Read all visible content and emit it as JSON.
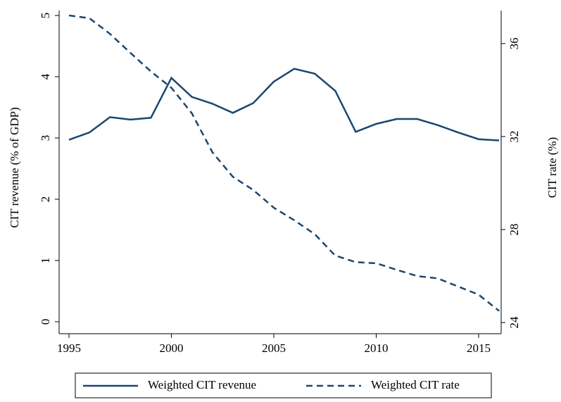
{
  "chart_data": {
    "type": "line",
    "x": [
      1995,
      1996,
      1997,
      1998,
      1999,
      2000,
      2001,
      2002,
      2003,
      2004,
      2005,
      2006,
      2007,
      2008,
      2009,
      2010,
      2011,
      2012,
      2013,
      2014,
      2015,
      2016
    ],
    "series": [
      {
        "name": "Weighted CIT revenue",
        "color": "#1a476f",
        "dash": "solid",
        "values": [
          2.97,
          3.09,
          3.34,
          3.3,
          3.33,
          3.98,
          3.67,
          3.56,
          3.41,
          3.57,
          3.92,
          4.13,
          4.05,
          3.77,
          3.1,
          3.23,
          3.31,
          3.31,
          3.21,
          3.09,
          2.98,
          2.96
        ]
      },
      {
        "name": "Weighted CIT rate",
        "color": "#1a476f",
        "dash": "dashed",
        "axis": "y2",
        "values": [
          37.21,
          37.09,
          36.42,
          35.6,
          34.8,
          34.1,
          33.0,
          31.33,
          30.27,
          29.7,
          28.94,
          28.4,
          27.8,
          26.88,
          26.6,
          26.55,
          26.27,
          26.0,
          25.9,
          25.55,
          25.2,
          24.5
        ]
      }
    ],
    "y_label": "CIT revenue (% of GDP)",
    "y2_label": "CIT rate (%)",
    "xlim": [
      1994.52,
      2016.1
    ],
    "xticks": [
      1995,
      2000,
      2005,
      2010,
      2015
    ],
    "ylim": [
      -0.195,
      5.08
    ],
    "yticks": [
      0,
      1,
      2,
      3,
      4,
      5
    ],
    "y2lim": [
      23.52,
      37.42
    ],
    "y2ticks": [
      24,
      28,
      32,
      36
    ],
    "grid": false,
    "legend": "bottom"
  }
}
